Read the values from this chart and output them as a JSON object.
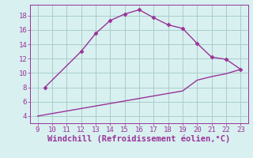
{
  "line1_x": [
    9.5,
    12,
    13,
    14,
    15,
    16,
    17,
    18,
    19,
    20,
    21,
    22,
    23
  ],
  "line1_y": [
    8.0,
    13.0,
    15.5,
    17.3,
    18.2,
    18.8,
    17.7,
    16.7,
    16.2,
    14.1,
    12.2,
    11.9,
    10.5
  ],
  "line2_x": [
    9,
    10,
    11,
    12,
    13,
    14,
    15,
    16,
    17,
    18,
    19,
    20,
    21,
    22,
    23
  ],
  "line2_y": [
    4.0,
    4.35,
    4.7,
    5.05,
    5.4,
    5.75,
    6.1,
    6.45,
    6.8,
    7.15,
    7.5,
    9.0,
    9.5,
    9.9,
    10.5
  ],
  "line_color": "#993399",
  "bg_color": "#d8f0f0",
  "grid_color": "#aacccc",
  "xlabel": "Windchill (Refroidissement éolien,°C)",
  "xlim": [
    8.5,
    23.5
  ],
  "ylim": [
    3.0,
    19.5
  ],
  "xticks": [
    9,
    10,
    11,
    12,
    13,
    14,
    15,
    16,
    17,
    18,
    19,
    20,
    21,
    22,
    23
  ],
  "yticks": [
    4,
    6,
    8,
    10,
    12,
    14,
    16,
    18
  ],
  "marker": "D",
  "markersize": 2.5,
  "linewidth": 1.0,
  "xlabel_fontsize": 7.5,
  "tick_fontsize": 6.5
}
